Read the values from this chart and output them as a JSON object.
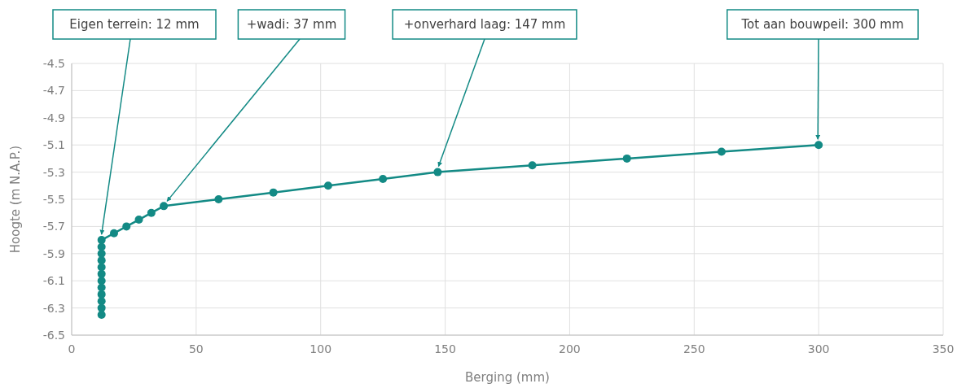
{
  "chart_data": {
    "type": "line",
    "xlabel": "Berging (mm)",
    "ylabel": "Hoogte (m N.A.P.)",
    "x": [
      12,
      12,
      12,
      12,
      12,
      12,
      12,
      12,
      12,
      12,
      12,
      12,
      17,
      22,
      27,
      32,
      37,
      59,
      81,
      103,
      125,
      147,
      185,
      223,
      261,
      300
    ],
    "series": [
      {
        "color": "#138a85",
        "values": [
          -6.35,
          -6.3,
          -6.25,
          -6.2,
          -6.15,
          -6.1,
          -6.05,
          -6.0,
          -5.95,
          -5.9,
          -5.85,
          -5.8,
          -5.75,
          -5.7,
          -5.65,
          -5.6,
          -5.55,
          -5.5,
          -5.45,
          -5.4,
          -5.35,
          -5.3,
          -5.25,
          -5.2,
          -5.15,
          -5.1
        ]
      }
    ],
    "xlim": [
      0,
      350
    ],
    "xticks": [
      0,
      50,
      100,
      150,
      200,
      250,
      300,
      350
    ],
    "ylim": [
      -6.5,
      -4.5
    ],
    "yticks": [
      -6.5,
      -6.3,
      -6.1,
      -5.9,
      -5.7,
      -5.5,
      -5.3,
      -5.1,
      -4.9,
      -4.7,
      -4.5
    ],
    "grid": true,
    "marker": "circle",
    "line_style": "solid",
    "annotations": [
      {
        "text": "Eigen terrein: 12 mm",
        "x": 12,
        "y": -5.8
      },
      {
        "text": "+wadi: 37 mm",
        "x": 37,
        "y": -5.55
      },
      {
        "text": "+onverhard laag: 147 mm",
        "x": 147,
        "y": -5.3
      },
      {
        "text": "Tot aan bouwpeil: 300 mm",
        "x": 300,
        "y": -5.1
      }
    ]
  }
}
